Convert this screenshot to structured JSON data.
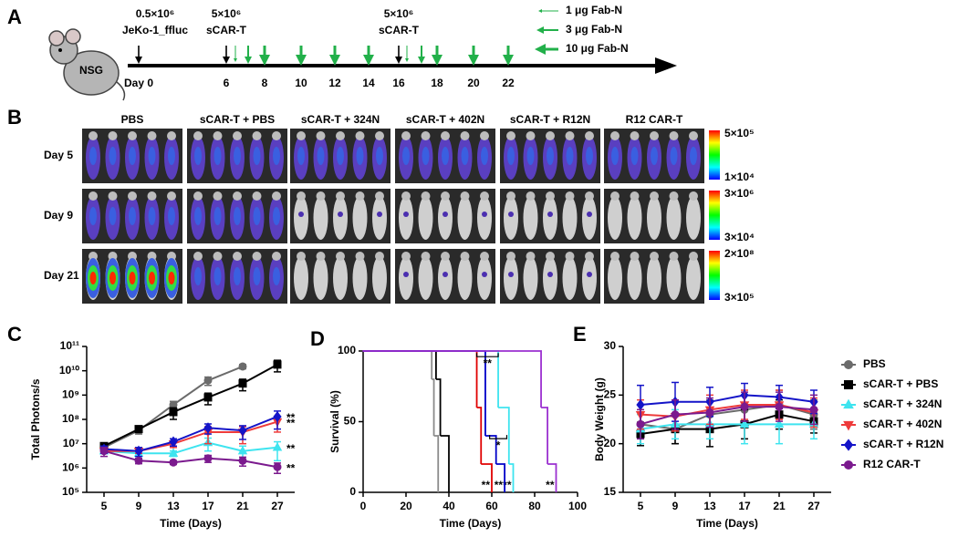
{
  "panel_a": {
    "panel": "A",
    "mouse": "NSG",
    "injections": [
      {
        "amount": "0.5×10⁶",
        "agent": "JeKo-1_ffluc"
      },
      {
        "amount": "5×10⁶",
        "agent": "sCAR-T"
      },
      {
        "amount": "5×10⁶",
        "agent": "sCAR-T"
      }
    ],
    "days": [
      "Day 0",
      "6",
      "8",
      "10",
      "12",
      "14",
      "16",
      "18",
      "20",
      "22"
    ],
    "legend": [
      "1 μg Fab-N",
      "3 μg Fab-N",
      "10 μg Fab-N"
    ]
  },
  "panel_b": {
    "panel": "B",
    "groups": [
      "PBS",
      "sCAR-T + PBS",
      "sCAR-T + 324N",
      "sCAR-T + 402N",
      "sCAR-T + R12N",
      "R12 CAR-T"
    ],
    "rows": [
      "Day 5",
      "Day 9",
      "Day 21"
    ],
    "scales": [
      [
        "5×10⁵",
        "1×10⁴"
      ],
      [
        "3×10⁶",
        "3×10⁴"
      ],
      [
        "2×10⁸",
        "3×10⁵"
      ]
    ]
  },
  "chart_data": [
    {
      "type": "line",
      "panel": "C",
      "x_label": "Time (Days)",
      "y_label": "Total Photons/s",
      "categories": [
        "5",
        "9",
        "13",
        "17",
        "21",
        "27"
      ],
      "log_scale": true,
      "ylim": [
        100000.0,
        100000000000.0
      ],
      "yticks": [
        {
          "value": 100000.0,
          "label": "10⁵"
        },
        {
          "value": 1000000.0,
          "label": "10⁶"
        },
        {
          "value": 10000000.0,
          "label": "10⁷"
        },
        {
          "value": 100000000.0,
          "label": "10⁸"
        },
        {
          "value": 1000000000.0,
          "label": "10⁹"
        },
        {
          "value": 10000000000.0,
          "label": "10¹⁰"
        },
        {
          "value": 100000000000.0,
          "label": "10¹¹"
        }
      ],
      "series": [
        {
          "color": "#6b6b6b",
          "marker": "circle",
          "values": [
            7000000.0,
            35000000.0,
            400000000.0,
            4000000000.0,
            15000000000.0,
            null
          ],
          "errors": [
            2000000.0,
            10000000.0,
            150000000.0,
            1500000000.0,
            3000000000.0,
            null
          ]
        },
        {
          "color": "#000000",
          "marker": "square",
          "values": [
            8000000.0,
            40000000.0,
            200000000.0,
            800000000.0,
            3000000000.0,
            18000000000.0
          ],
          "errors": [
            2000000.0,
            10000000.0,
            100000000.0,
            400000000.0,
            1500000000.0,
            9000000000.0
          ]
        },
        {
          "color": "#3ee4ef",
          "marker": "triangle",
          "values": [
            5000000.0,
            4000000.0,
            4000000.0,
            11000000.0,
            5000000.0,
            7000000.0
          ],
          "errors": [
            1000000.0,
            1000000.0,
            1000000.0,
            6000000.0,
            3000000.0,
            5000000.0
          ],
          "end_label": "**"
        },
        {
          "color": "#ee3b3b",
          "marker": "triangle-down",
          "values": [
            5000000.0,
            5000000.0,
            10000000.0,
            30000000.0,
            30000000.0,
            80000000.0
          ],
          "errors": [
            1000000.0,
            1000000.0,
            3000000.0,
            20000000.0,
            20000000.0,
            50000000.0
          ],
          "end_label": "**"
        },
        {
          "color": "#1414c8",
          "marker": "diamond",
          "values": [
            6000000.0,
            5000000.0,
            12000000.0,
            45000000.0,
            35000000.0,
            130000000.0
          ],
          "errors": [
            2000000.0,
            2000000.0,
            4000000.0,
            20000000.0,
            20000000.0,
            90000000.0
          ],
          "end_label": "**"
        },
        {
          "color": "#7b1a8e",
          "marker": "circle",
          "values": [
            5000000.0,
            2000000.0,
            1700000.0,
            2500000.0,
            2000000.0,
            1100000.0
          ],
          "errors": [
            2000000.0,
            500000.0,
            300000.0,
            800000.0,
            800000.0,
            500000.0
          ],
          "end_label": "**"
        }
      ]
    },
    {
      "type": "step",
      "panel": "D",
      "x_label": "Time (Days)",
      "y_label": "Survival (%)",
      "xlim": [
        0,
        100
      ],
      "xticks": [
        0,
        20,
        40,
        60,
        80,
        100
      ],
      "ylim": [
        0,
        100
      ],
      "yticks": [
        0,
        50,
        100
      ],
      "series": [
        {
          "color": "#3ee4ef",
          "x": [
            0,
            63,
            68,
            70
          ],
          "values": [
            100,
            60,
            20,
            0
          ],
          "end_label": "**"
        },
        {
          "color": "#8a8a8a",
          "x": [
            0,
            32,
            33,
            35
          ],
          "values": [
            100,
            80,
            40,
            0
          ]
        },
        {
          "color": "#000000",
          "x": [
            0,
            34,
            36,
            40
          ],
          "values": [
            100,
            80,
            40,
            0
          ]
        },
        {
          "color": "#e00000",
          "x": [
            0,
            53,
            55,
            60
          ],
          "values": [
            100,
            60,
            20,
            0
          ],
          "end_label": "**"
        },
        {
          "color": "#0000c8",
          "x": [
            0,
            57,
            62,
            66
          ],
          "values": [
            100,
            40,
            20,
            0
          ],
          "end_label": "**"
        },
        {
          "color": "#9b30d0",
          "x": [
            0,
            83,
            86,
            90
          ],
          "values": [
            100,
            60,
            20,
            0
          ],
          "end_label": "**"
        }
      ],
      "annotations": [
        {
          "text": "**",
          "x": [
            53,
            63
          ],
          "y": 96
        },
        {
          "text": "*",
          "x": [
            59,
            67
          ],
          "y": 38
        }
      ]
    },
    {
      "type": "line",
      "panel": "E",
      "x_label": "Time (Days)",
      "y_label": "Body Weight (g)",
      "categories": [
        "5",
        "9",
        "13",
        "17",
        "21",
        "27"
      ],
      "ylim": [
        15,
        30
      ],
      "yticks": [
        15,
        20,
        25,
        30
      ],
      "legend": "right",
      "series": [
        {
          "name": "PBS",
          "color": "#6b6b6b",
          "marker": "circle",
          "values": [
            22,
            21.5,
            23,
            23.5,
            24,
            23
          ],
          "errors": [
            1.5,
            1.5,
            1.5,
            1.5,
            1.5,
            1.5
          ]
        },
        {
          "name": "sCAR-T + PBS",
          "color": "#000000",
          "marker": "square",
          "values": [
            21,
            21.5,
            21.5,
            22,
            23,
            22.3
          ],
          "errors": [
            1.2,
            1.5,
            1.8,
            1.5,
            1.5,
            1.2
          ]
        },
        {
          "name": "sCAR-T + 324N",
          "color": "#3ee4ef",
          "marker": "triangle",
          "values": [
            21.5,
            22,
            22,
            22,
            22,
            22
          ],
          "errors": [
            1.5,
            1.5,
            1.5,
            2,
            2,
            1.5
          ]
        },
        {
          "name": "sCAR-T + 402N",
          "color": "#ee3b3b",
          "marker": "triangle-down",
          "values": [
            23,
            22.8,
            23.5,
            24,
            24,
            23.2
          ],
          "errors": [
            1.5,
            1.5,
            1.5,
            1.5,
            1.5,
            1.5
          ]
        },
        {
          "name": "sCAR-T + R12N",
          "color": "#1414c8",
          "marker": "diamond",
          "values": [
            24,
            24.3,
            24.3,
            25,
            24.8,
            24.3
          ],
          "errors": [
            2,
            2,
            1.5,
            1.2,
            1.2,
            1.2
          ]
        },
        {
          "name": "R12 CAR-T",
          "color": "#7b1a8e",
          "marker": "circle",
          "values": [
            22,
            23,
            23.2,
            23.8,
            23.8,
            23.5
          ],
          "errors": [
            1.5,
            1.5,
            1.5,
            1.5,
            1.5,
            1.5
          ]
        }
      ]
    }
  ]
}
